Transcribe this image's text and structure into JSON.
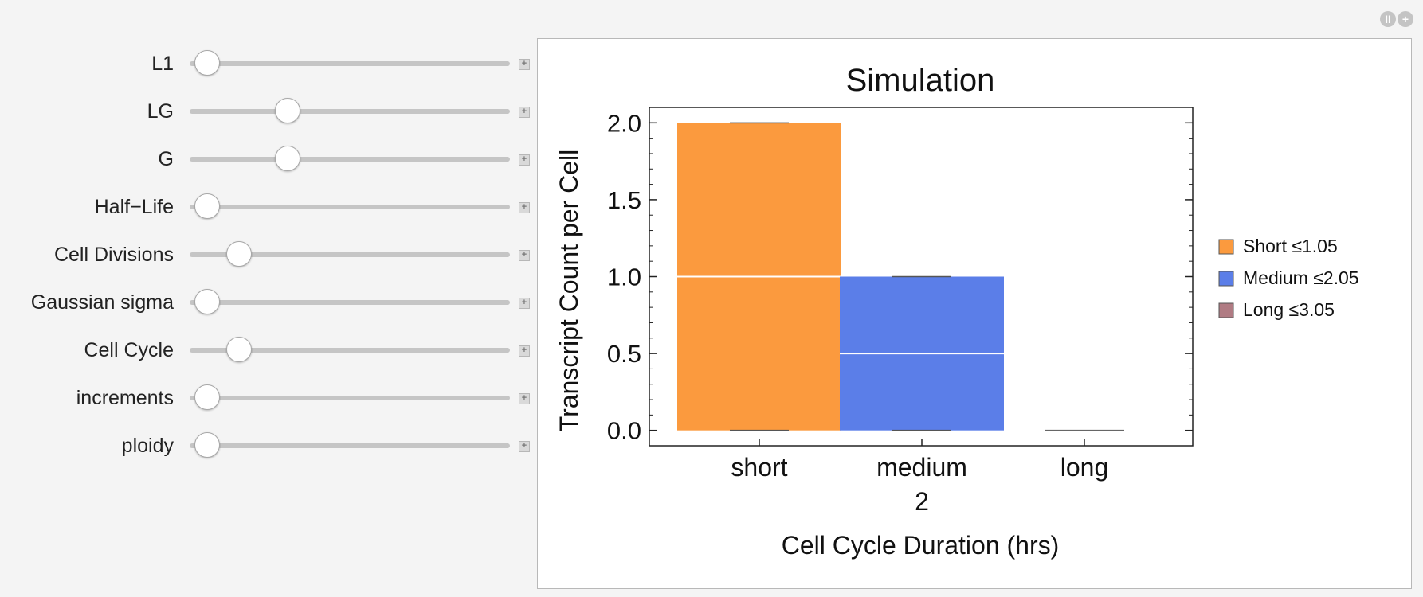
{
  "controls": [
    {
      "label": "L1",
      "value": 0.0
    },
    {
      "label": "LG",
      "value": 0.25
    },
    {
      "label": "G",
      "value": 0.25
    },
    {
      "label": "Half−Life",
      "value": 0.0
    },
    {
      "label": "Cell Divisions",
      "value": 0.1
    },
    {
      "label": "Gaussian sigma",
      "value": 0.0
    },
    {
      "label": "Cell Cycle",
      "value": 0.1
    },
    {
      "label": "increments",
      "value": 0.0
    },
    {
      "label": "ploidy",
      "value": 0.0
    }
  ],
  "plus_symbol": "+",
  "top_icons": {
    "pause_symbol": "II",
    "add_symbol": "+"
  },
  "chart_data": {
    "type": "bar",
    "title": "Simulation",
    "xlabel": "Cell Cycle Duration (hrs)",
    "ylabel": "Transcript Count per Cell",
    "categories": [
      "short",
      "medium",
      "long"
    ],
    "category_sublabels": [
      "",
      "2",
      ""
    ],
    "ylim": [
      -0.1,
      2.1
    ],
    "yticks": [
      "0.0",
      "0.5",
      "1.0",
      "1.5",
      "2.0"
    ],
    "series": [
      {
        "name": "Short ≤1.05",
        "category": "short",
        "value": 2.0,
        "median": 1.0,
        "color": "#fb9a3e"
      },
      {
        "name": "Medium ≤2.05",
        "category": "medium",
        "value": 1.0,
        "median": 0.5,
        "color": "#5b7ee8"
      },
      {
        "name": "Long ≤3.05",
        "category": "long",
        "value": 0.0,
        "median": 0.0,
        "color": "#b07b83"
      }
    ],
    "legend_position": "right"
  }
}
